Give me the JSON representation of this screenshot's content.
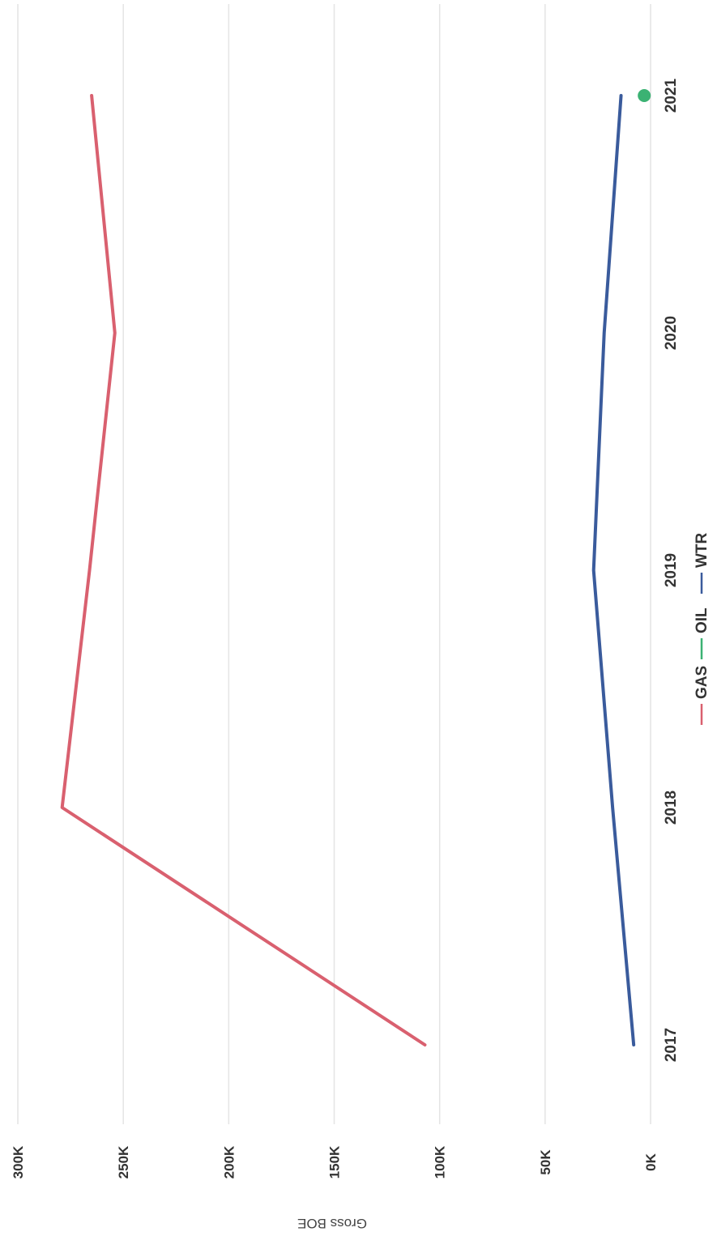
{
  "chart_data": {
    "type": "line",
    "title": "",
    "ylabel": "Gross BOE",
    "xlabel": "",
    "x": [
      "2017",
      "2018",
      "2019",
      "2020",
      "2021"
    ],
    "ylim": [
      0,
      300000
    ],
    "yticks": [
      {
        "value": 0,
        "label": "0K"
      },
      {
        "value": 50000,
        "label": "50K"
      },
      {
        "value": 100000,
        "label": "100K"
      },
      {
        "value": 150000,
        "label": "150K"
      },
      {
        "value": 200000,
        "label": "200K"
      },
      {
        "value": 250000,
        "label": "250K"
      },
      {
        "value": 300000,
        "label": "300K"
      }
    ],
    "grid": true,
    "legend_position": "bottom",
    "orientation": "rotated 90 degrees clockwise",
    "series": [
      {
        "name": "GAS",
        "color": "#d9606f",
        "values": [
          107000,
          279000,
          266000,
          254000,
          265000
        ]
      },
      {
        "name": "OIL",
        "color": "#3bb273",
        "values": [
          null,
          null,
          null,
          null,
          3000
        ]
      },
      {
        "name": "WTR",
        "color": "#3a5b9c",
        "values": [
          8000,
          18000,
          27000,
          22000,
          14000
        ]
      }
    ]
  }
}
